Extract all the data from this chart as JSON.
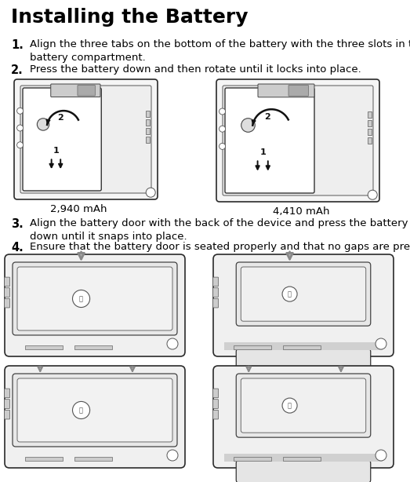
{
  "title": "Installing the Battery",
  "step1_num": "1.",
  "step1_text": "Align the three tabs on the bottom of the battery with the three slots in the\nbattery compartment.",
  "step2_num": "2.",
  "step2_text": "Press the battery down and then rotate until it locks into place.",
  "step3_num": "3.",
  "step3_text": "Align the battery door with the back of the device and press the battery door\ndown until it snaps into place.",
  "step4_num": "4.",
  "step4_text": "Ensure that the battery door is seated properly and that no gaps are present.",
  "label_left": "2,940 mAh",
  "label_right": "4,410 mAh",
  "bg_color": "#ffffff",
  "text_color": "#000000",
  "title_fontsize": 18,
  "step_num_fontsize": 10.5,
  "step_text_fontsize": 9.5,
  "label_fontsize": 9.5
}
